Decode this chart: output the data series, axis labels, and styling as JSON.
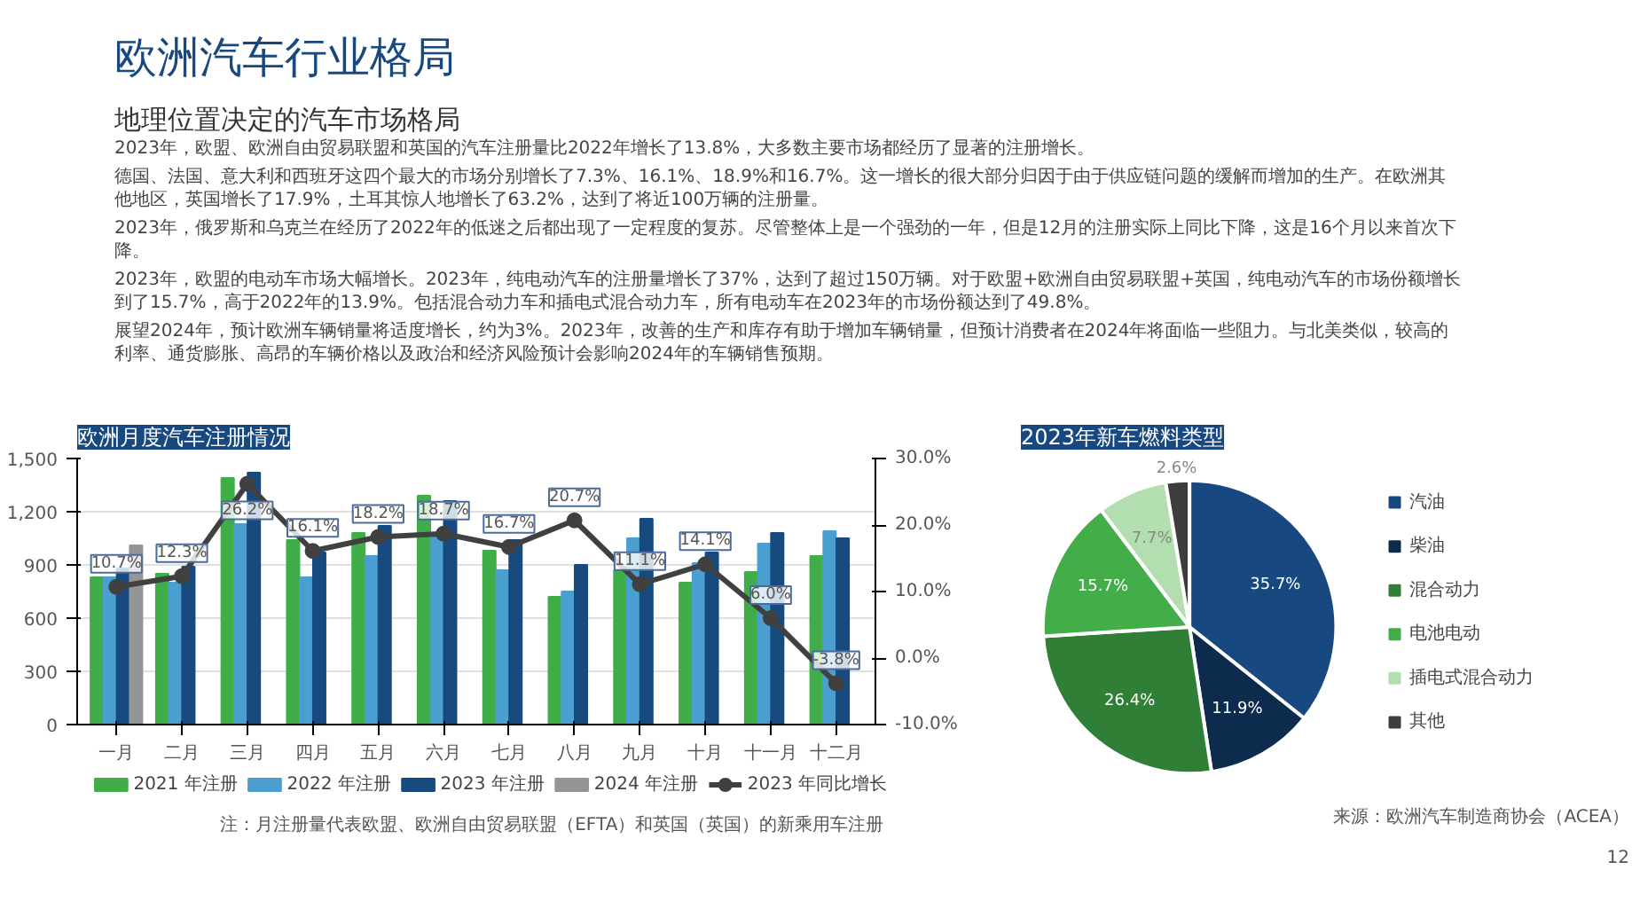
{
  "chart_data": [
    {
      "type": "other",
      "title": "欧洲汽车行业格局",
      "subtitle": "地理位置决定的汽车市场格局",
      "annotations": [
        "2023年，欧盟、欧洲自由贸易联盟和英国的汽车注册量比2022年增长了13.8%，大多数主要市场都经历了显著的注册增长。",
        "德国、法国、意大利和西班牙这四个最大的市场分别增长了7.3%、16.1%、18.9%和16.7%。这一增长的很大部分归因于由于供应链问题的缓解而增加的生产。在欧洲其他地区，英国增长了17.9%，土耳其惊人地增长了63.2%，达到了将近100万辆的注册量。",
        "2023年，俄罗斯和乌克兰在经历了2022年的低迷之后都出现了一定程度的复苏。尽管整体上是一个强劲的一年，但是12月的注册实际上同比下降，这是16个月以来首次下降。",
        "2023年，欧盟的电动车市场大幅增长。2023年，纯电动汽车的注册量增长了37%，达到了超过150万辆。对于欧盟+欧洲自由贸易联盟+英国，纯电动汽车的市场份额增长到了15.7%，高于2022年的13.9%。包括混合动力车和插电式混合动力车，所有电动车在2023年的市场份额达到了49.8%。",
        "展望2024年，预计欧洲车辆销量将适度增长，约为3%。2023年，改善的生产和库存有助于增加车辆销量，但预计消费者在2024年将面临一些阻力。与北美类似，较高的利率、通货膨胀、高昂的车辆价格以及政治和经济风险预计会影响2024年的车辆销售预期。"
      ]
    },
    {
      "type": "bar",
      "title": "欧洲月度汽车注册情况",
      "categories": [
        "一月",
        "二月",
        "三月",
        "四月",
        "五月",
        "六月",
        "七月",
        "八月",
        "九月",
        "十月",
        "十一月",
        "十二月"
      ],
      "series": [
        {
          "name": "2021 年注册",
          "color": "#3fae49",
          "values": [
            830,
            850,
            1390,
            1040,
            1080,
            1290,
            980,
            720,
            870,
            800,
            860,
            950
          ]
        },
        {
          "name": "2022 年注册",
          "color": "#4a9fd0",
          "values": [
            830,
            800,
            1130,
            830,
            950,
            1070,
            870,
            750,
            1050,
            910,
            1020,
            1090
          ]
        },
        {
          "name": "2023 年注册",
          "color": "#174a7e",
          "values": [
            880,
            890,
            1420,
            970,
            1120,
            1260,
            1040,
            900,
            1160,
            970,
            1080,
            1050
          ]
        },
        {
          "name": "2024 年注册",
          "color": "#959595",
          "values": [
            1010,
            null,
            null,
            null,
            null,
            null,
            null,
            null,
            null,
            null,
            null,
            null
          ]
        },
        {
          "name": "2023 年同比增长",
          "type": "line",
          "axis": "y2",
          "color": "#404040",
          "marker": "circle",
          "values": [
            10.7,
            12.3,
            26.2,
            16.1,
            18.2,
            18.7,
            16.7,
            20.7,
            11.1,
            14.1,
            6.0,
            -3.8
          ],
          "value_labels": [
            "10.7%",
            "12.3%",
            "26.2%",
            "16.1%",
            "18.2%",
            "18.7%",
            "16.7%",
            "20.7%",
            "11.1%",
            "14.1%",
            "6.0%",
            "-3.8%"
          ]
        }
      ],
      "ylim": [
        0,
        1500
      ],
      "yticks": [
        0,
        300,
        600,
        900,
        {
          "value": 1200,
          "label": "1,200"
        },
        {
          "value": 1500,
          "label": "1,500"
        }
      ],
      "y2lim": [
        -10,
        30
      ],
      "y2ticks": [
        {
          "value": -10,
          "label": "-10.0%"
        },
        {
          "value": 0,
          "label": "0.0%"
        },
        {
          "value": 10,
          "label": "10.0%"
        },
        {
          "value": 20,
          "label": "20.0%"
        },
        {
          "value": 30,
          "label": "30.0%"
        }
      ],
      "grid": "y",
      "legend": "bottom",
      "annotations": [
        "注：月注册量代表欧盟、欧洲自由贸易联盟（EFTA）和英国（英国）的新乘用车注册"
      ]
    },
    {
      "type": "pie",
      "title": "2023年新车燃料类型",
      "categories": [
        "汽油",
        "柴油",
        "混合动力",
        "电池电动",
        "插电式混合动力",
        "其他"
      ],
      "values": [
        35.7,
        11.9,
        26.4,
        15.7,
        7.7,
        2.6
      ],
      "colors": [
        "#17487f",
        "#0c2b4d",
        "#2f7f36",
        "#43ad4a",
        "#b3dfb0",
        "#3d3d3d"
      ],
      "value_labels": [
        "35.7%",
        "11.9%",
        "26.4%",
        "15.7%",
        "7.7%",
        "2.6%"
      ],
      "legend": "right",
      "annotations": [
        "来源：欧洲汽车制造商协会（ACEA）",
        "12"
      ]
    }
  ]
}
